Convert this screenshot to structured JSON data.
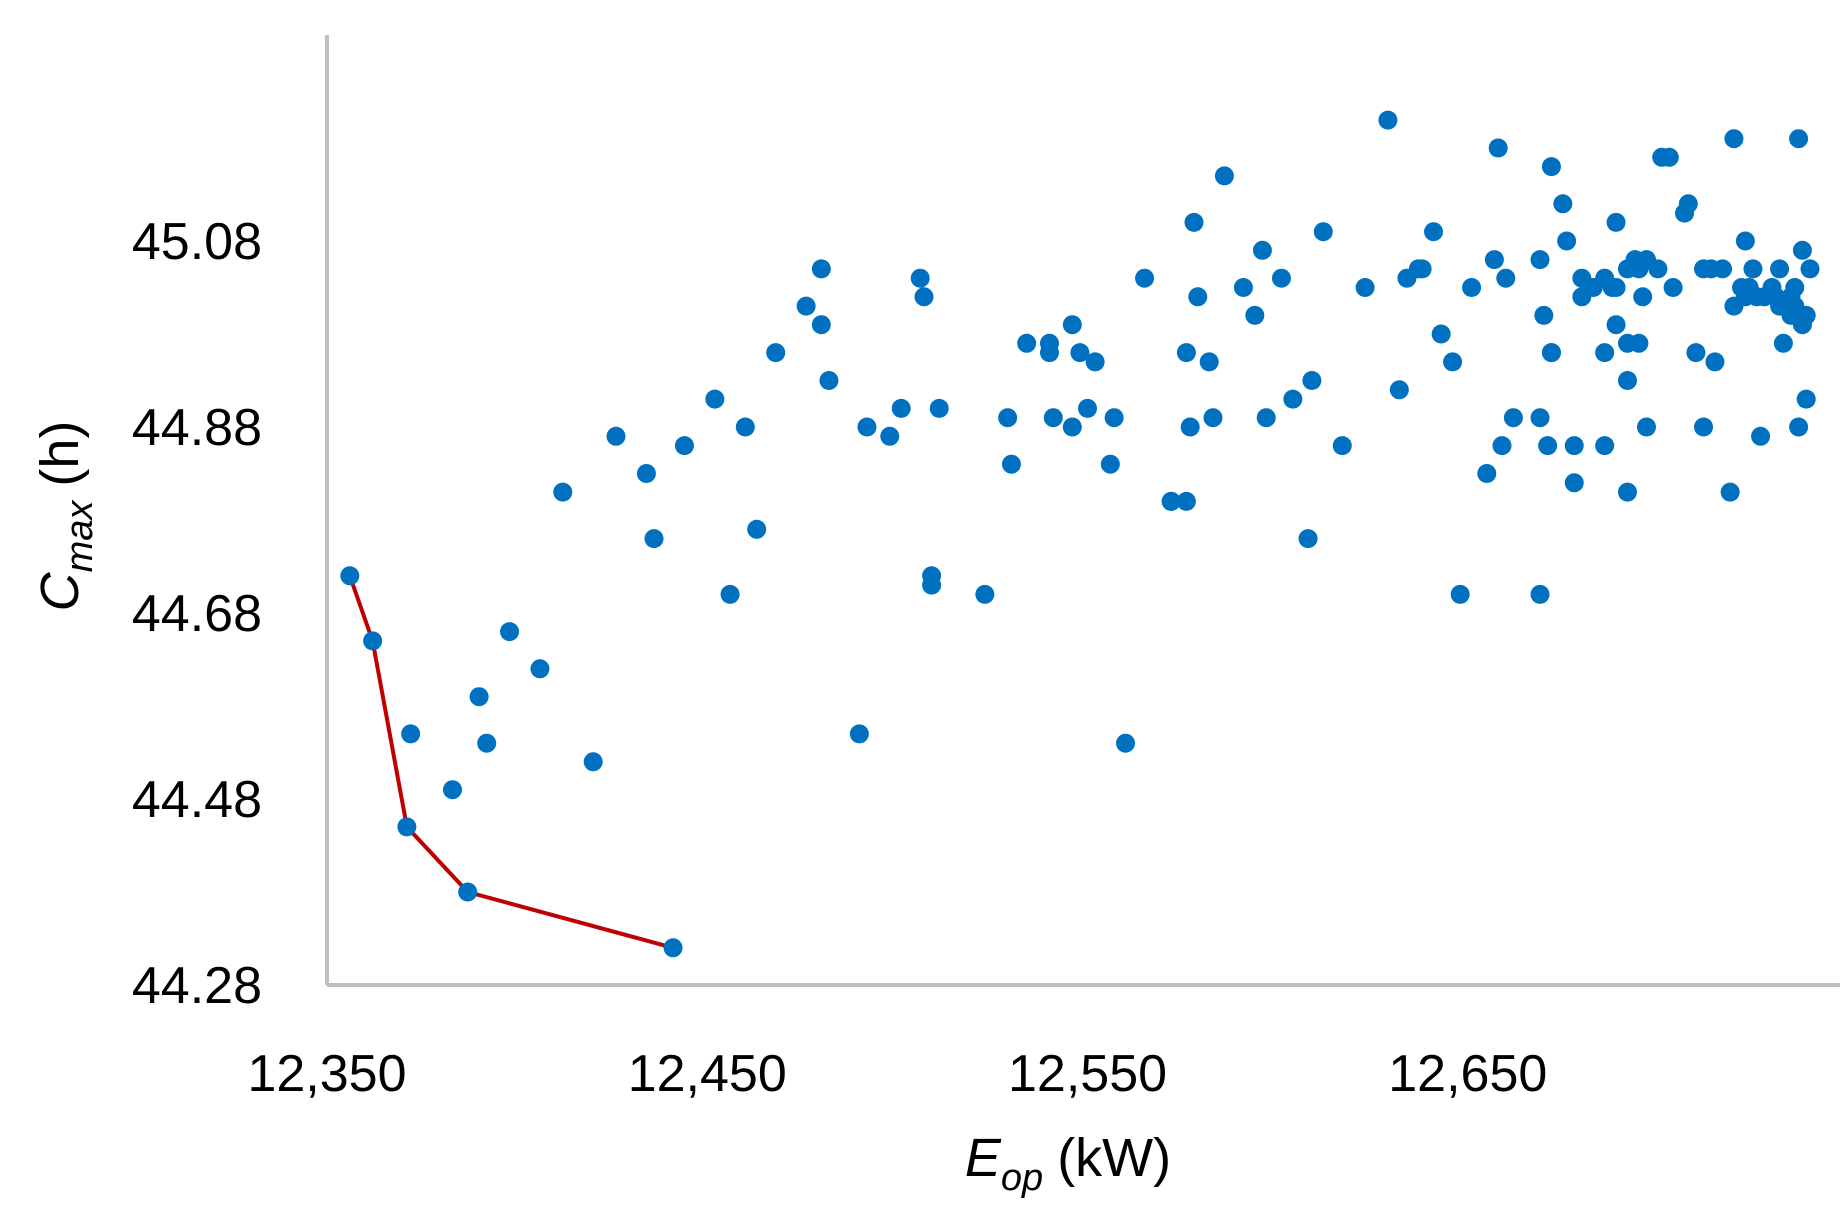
{
  "chart_data": {
    "type": "scatter",
    "title": "",
    "xlabel": {
      "main": "E",
      "sub": "op",
      "unit": "(kW)"
    },
    "ylabel": {
      "main": "C",
      "sub": "max",
      "unit": "(h)"
    },
    "xlim": [
      12350,
      12740
    ],
    "ylim": [
      44.28,
      45.28
    ],
    "x_ticks": [
      {
        "value": 12350,
        "label": "12,350"
      },
      {
        "value": 12450,
        "label": "12,450"
      },
      {
        "value": 12550,
        "label": "12,550"
      },
      {
        "value": 12650,
        "label": "12,650"
      }
    ],
    "y_ticks": [
      {
        "value": 44.28,
        "label": "44.28"
      },
      {
        "value": 44.48,
        "label": "44.48"
      },
      {
        "value": 44.68,
        "label": "44.68"
      },
      {
        "value": 44.88,
        "label": "44.88"
      },
      {
        "value": 45.08,
        "label": "45.08"
      }
    ],
    "grid": false,
    "legend": "none",
    "colors": {
      "points": "#0070C0",
      "front_line": "#C00000",
      "axis": "#BFBFBF"
    },
    "series": [
      {
        "kind": "points",
        "values": [
          [
            12406,
            44.62
          ],
          [
            12420,
            44.52
          ],
          [
            12372,
            44.55
          ],
          [
            12383,
            44.49
          ],
          [
            12390,
            44.59
          ],
          [
            12392,
            44.54
          ],
          [
            12398,
            44.66
          ],
          [
            12412,
            44.81
          ],
          [
            12426,
            44.87
          ],
          [
            12434,
            44.83
          ],
          [
            12436,
            44.76
          ],
          [
            12444,
            44.86
          ],
          [
            12452,
            44.91
          ],
          [
            12460,
            44.88
          ],
          [
            12463,
            44.77
          ],
          [
            12468,
            44.96
          ],
          [
            12456,
            44.7
          ],
          [
            12476,
            45.01
          ],
          [
            12480,
            44.99
          ],
          [
            12482,
            44.93
          ],
          [
            12480,
            45.05
          ],
          [
            12492,
            44.88
          ],
          [
            12498,
            44.87
          ],
          [
            12501,
            44.9
          ],
          [
            12490,
            44.55
          ],
          [
            12506,
            45.04
          ],
          [
            12507,
            45.02
          ],
          [
            12509,
            44.72
          ],
          [
            12511,
            44.9
          ],
          [
            12509,
            44.71
          ],
          [
            12523,
            44.7
          ],
          [
            12529,
            44.89
          ],
          [
            12530,
            44.84
          ],
          [
            12534,
            44.97
          ],
          [
            12541,
            44.89
          ],
          [
            12540,
            44.97
          ],
          [
            12540,
            44.96
          ],
          [
            12546,
            44.99
          ],
          [
            12548,
            44.96
          ],
          [
            12546,
            44.88
          ],
          [
            12552,
            44.95
          ],
          [
            12556,
            44.84
          ],
          [
            12550,
            44.9
          ],
          [
            12557,
            44.89
          ],
          [
            12560,
            44.54
          ],
          [
            12565,
            45.04
          ],
          [
            12572,
            44.8
          ],
          [
            12576,
            44.8
          ],
          [
            12576,
            44.96
          ],
          [
            12577,
            44.88
          ],
          [
            12578,
            45.1
          ],
          [
            12579,
            45.02
          ],
          [
            12583,
            44.89
          ],
          [
            12582,
            44.95
          ],
          [
            12572,
            44.8
          ],
          [
            12586,
            45.15
          ],
          [
            12591,
            45.03
          ],
          [
            12594,
            45.0
          ],
          [
            12596,
            45.07
          ],
          [
            12597,
            44.89
          ],
          [
            12601,
            45.04
          ],
          [
            12604,
            44.91
          ],
          [
            12609,
            44.93
          ],
          [
            12608,
            44.76
          ],
          [
            12612,
            45.09
          ],
          [
            12617,
            44.86
          ],
          [
            12623,
            45.03
          ],
          [
            12629,
            45.21
          ],
          [
            12632,
            44.92
          ],
          [
            12634,
            45.04
          ],
          [
            12637,
            45.05
          ],
          [
            12638,
            45.05
          ],
          [
            12641,
            45.09
          ],
          [
            12643,
            44.98
          ],
          [
            12646,
            44.95
          ],
          [
            12648,
            44.7
          ],
          [
            12651,
            45.03
          ],
          [
            12655,
            44.83
          ],
          [
            12658,
            45.18
          ],
          [
            12660,
            45.04
          ],
          [
            12657,
            45.06
          ],
          [
            12662,
            44.89
          ],
          [
            12659,
            44.86
          ],
          [
            12669,
            45.06
          ],
          [
            12669,
            44.89
          ],
          [
            12670,
            45.0
          ],
          [
            12669,
            44.7
          ],
          [
            12671,
            44.86
          ],
          [
            12672,
            44.96
          ],
          [
            12672,
            45.16
          ],
          [
            12675,
            45.12
          ],
          [
            12672,
            44.96
          ],
          [
            12676,
            45.08
          ],
          [
            12678,
            44.86
          ],
          [
            12678,
            44.82
          ],
          [
            12680,
            45.02
          ],
          [
            12680,
            45.04
          ],
          [
            12683,
            45.03
          ],
          [
            12686,
            44.86
          ],
          [
            12686,
            44.96
          ],
          [
            12686,
            45.04
          ],
          [
            12688,
            45.03
          ],
          [
            12689,
            44.99
          ],
          [
            12689,
            45.03
          ],
          [
            12692,
            44.81
          ],
          [
            12689,
            45.1
          ],
          [
            12692,
            45.05
          ],
          [
            12692,
            44.97
          ],
          [
            12692,
            44.93
          ],
          [
            12694,
            45.06
          ],
          [
            12695,
            45.05
          ],
          [
            12695,
            44.97
          ],
          [
            12696,
            45.02
          ],
          [
            12697,
            44.88
          ],
          [
            12697,
            45.06
          ],
          [
            12700,
            45.05
          ],
          [
            12701,
            45.17
          ],
          [
            12703,
            45.17
          ],
          [
            12704,
            45.03
          ],
          [
            12707,
            45.11
          ],
          [
            12708,
            45.12
          ],
          [
            12710,
            44.96
          ],
          [
            12712,
            45.05
          ],
          [
            12712,
            44.88
          ],
          [
            12714,
            45.05
          ],
          [
            12715,
            44.95
          ],
          [
            12717,
            45.05
          ],
          [
            12719,
            44.81
          ],
          [
            12720,
            45.01
          ],
          [
            12720,
            45.19
          ],
          [
            12722,
            45.03
          ],
          [
            12723,
            45.08
          ],
          [
            12723,
            45.02
          ],
          [
            12724,
            45.03
          ],
          [
            12725,
            45.05
          ],
          [
            12726,
            45.02
          ],
          [
            12727,
            44.87
          ],
          [
            12728,
            45.02
          ],
          [
            12730,
            45.03
          ],
          [
            12731,
            45.02
          ],
          [
            12732,
            45.01
          ],
          [
            12732,
            45.05
          ],
          [
            12733,
            44.97
          ],
          [
            12735,
            45.0
          ],
          [
            12735,
            45.02
          ],
          [
            12736,
            45.01
          ],
          [
            12736,
            45.03
          ],
          [
            12737,
            45.19
          ],
          [
            12737,
            44.88
          ],
          [
            12738,
            44.99
          ],
          [
            12738,
            45.07
          ],
          [
            12739,
            44.91
          ],
          [
            12739,
            45.0
          ],
          [
            12740,
            45.05
          ]
        ]
      },
      {
        "kind": "front",
        "values": [
          [
            12356,
            44.72
          ],
          [
            12362,
            44.65
          ],
          [
            12371,
            44.45
          ],
          [
            12387,
            44.38
          ],
          [
            12441,
            44.32
          ]
        ]
      }
    ]
  }
}
